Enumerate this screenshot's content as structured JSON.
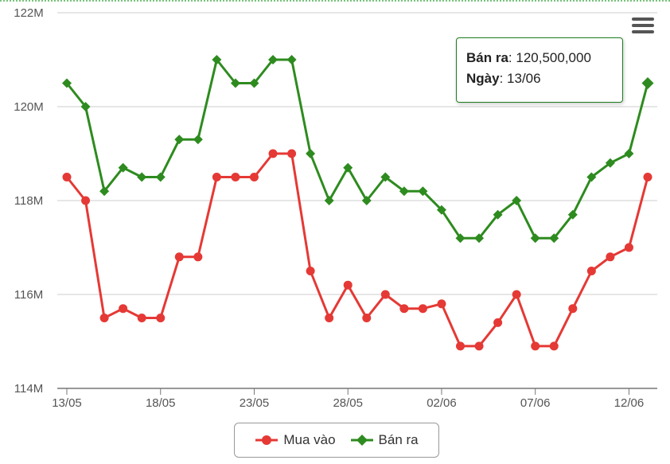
{
  "chart_data": {
    "type": "line",
    "x": [
      "13/05",
      "14/05",
      "15/05",
      "16/05",
      "17/05",
      "18/05",
      "19/05",
      "20/05",
      "21/05",
      "22/05",
      "23/05",
      "24/05",
      "25/05",
      "26/05",
      "27/05",
      "28/05",
      "29/05",
      "30/05",
      "31/05",
      "01/06",
      "02/06",
      "03/06",
      "04/06",
      "05/06",
      "06/06",
      "07/06",
      "08/06",
      "09/06",
      "10/06",
      "11/06",
      "12/06",
      "13/06"
    ],
    "x_tick_labels": [
      "13/05",
      "18/05",
      "23/05",
      "28/05",
      "02/06",
      "07/06",
      "12/06"
    ],
    "y_tick_labels": [
      "122M",
      "120M",
      "118M",
      "116M",
      "114M"
    ],
    "ylim": [
      114000000,
      122000000
    ],
    "series": [
      {
        "name": "Mua vào",
        "color": "#e53935",
        "marker": "circle",
        "values": [
          118500000,
          118000000,
          115500000,
          115700000,
          115500000,
          115500000,
          116800000,
          116800000,
          118500000,
          118500000,
          118500000,
          119000000,
          119000000,
          116500000,
          115500000,
          116200000,
          115500000,
          116000000,
          115700000,
          115700000,
          115800000,
          114900000,
          114900000,
          115400000,
          116000000,
          114900000,
          114900000,
          115700000,
          116500000,
          116800000,
          117000000,
          118500000
        ]
      },
      {
        "name": "Bán ra",
        "color": "#2e8b1f",
        "marker": "diamond",
        "values": [
          120500000,
          120000000,
          118200000,
          118700000,
          118500000,
          118500000,
          119300000,
          119300000,
          121000000,
          120500000,
          120500000,
          121000000,
          121000000,
          119000000,
          118000000,
          118700000,
          118000000,
          118500000,
          118200000,
          118200000,
          117800000,
          117200000,
          117200000,
          117700000,
          118000000,
          117200000,
          117200000,
          117700000,
          118500000,
          118800000,
          119000000,
          120500000
        ]
      }
    ],
    "grid": true,
    "legend_position": "bottom"
  },
  "tooltip": {
    "series_label": "Bán ra",
    "series_value": "120,500,000",
    "date_label": "Ngày",
    "date_value": "13/06"
  },
  "legend": {
    "items": [
      {
        "label": "Mua vào",
        "color": "#e53935"
      },
      {
        "label": "Bán ra",
        "color": "#2e8b1f"
      }
    ]
  },
  "menu": {
    "icon": "hamburger-menu-icon"
  }
}
